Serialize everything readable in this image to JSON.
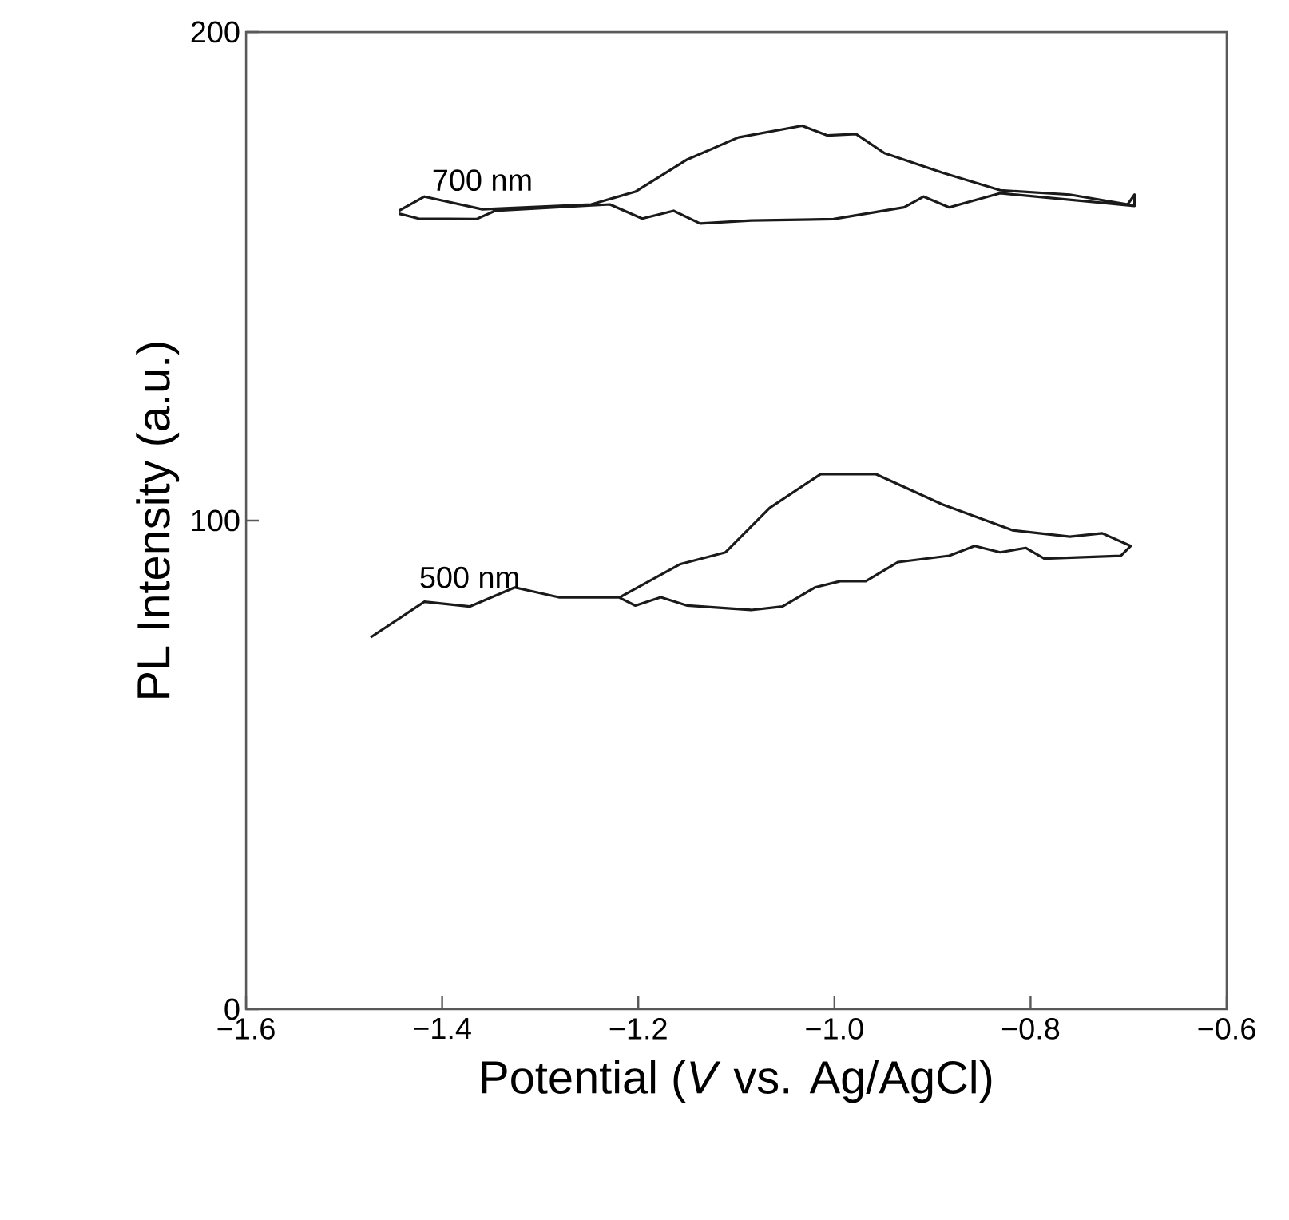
{
  "chart_data": {
    "type": "line",
    "xlabel": "Potential (*V* vs. Ag/AgCl)",
    "ylabel": "PL Intensity (a.u.)",
    "xlim": [
      -1.6,
      -0.6
    ],
    "ylim": [
      0,
      200
    ],
    "xticks": [
      {
        "value": -1.6,
        "label": "−1.6"
      },
      {
        "value": -1.4,
        "label": "−1.4"
      },
      {
        "value": -1.2,
        "label": "−1.2"
      },
      {
        "value": -1.0,
        "label": "−1.0"
      },
      {
        "value": -0.8,
        "label": "−0.8"
      },
      {
        "value": -0.6,
        "label": "−0.6"
      }
    ],
    "yticks": [
      0,
      100,
      200
    ],
    "grid": false,
    "legend": false,
    "marker": "none",
    "line_style": "solid",
    "series": [
      {
        "name": "700 nm",
        "color": "#1a1a1a",
        "x": [
          -1.444,
          -1.418,
          -1.359,
          -1.248,
          -1.203,
          -1.15,
          -1.098,
          -1.033,
          -1.007,
          -0.978,
          -0.949,
          -0.89,
          -0.831,
          -0.76,
          -0.701,
          -0.694,
          -0.694,
          -0.831,
          -0.883,
          -0.909,
          -0.929,
          -1.001,
          -1.085,
          -1.137,
          -1.164,
          -1.196,
          -1.229,
          -1.346,
          -1.365,
          -1.424,
          -1.444
        ],
        "values": [
          163.4,
          166.3,
          163.7,
          164.7,
          167.3,
          173.9,
          178.4,
          180.8,
          178.8,
          179.1,
          175.2,
          171.2,
          167.6,
          166.7,
          164.7,
          166.7,
          164.4,
          167,
          164.1,
          166.3,
          164.1,
          161.7,
          161.4,
          160.8,
          163.4,
          161.8,
          164.7,
          163.4,
          161.7,
          161.8,
          162.8
        ]
      },
      {
        "name": "500 nm",
        "color": "#1a1a1a",
        "x": [
          -1.473,
          -1.418,
          -1.372,
          -1.326,
          -1.281,
          -1.219,
          -1.157,
          -1.111,
          -1.066,
          -1.014,
          -0.958,
          -0.89,
          -0.818,
          -0.76,
          -0.727,
          -0.698,
          -0.708,
          -0.786,
          -0.805,
          -0.831,
          -0.857,
          -0.883,
          -0.935,
          -0.968,
          -0.994,
          -1.02,
          -1.053,
          -1.085,
          -1.15,
          -1.177,
          -1.203,
          -1.219
        ],
        "values": [
          76.1,
          83.4,
          82.4,
          86.3,
          84.3,
          84.3,
          91.1,
          93.5,
          102.6,
          109.5,
          109.5,
          103.3,
          98.0,
          96.7,
          97.4,
          94.8,
          92.8,
          92.2,
          94.4,
          93.5,
          94.8,
          92.8,
          91.5,
          87.6,
          87.6,
          86.3,
          82.4,
          81.7,
          82.6,
          84.3,
          82.6,
          84.2
        ]
      }
    ]
  }
}
